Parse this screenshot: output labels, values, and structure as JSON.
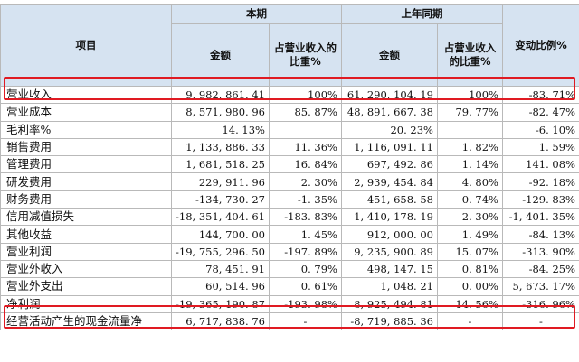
{
  "header": {
    "item": "项目",
    "current_period": "本期",
    "prior_period": "上年同期",
    "amount": "金额",
    "share_of_revenue": "占营业收入的比重%",
    "share_of_revenue_prior": "占营业收入的比重%",
    "change_ratio": "变动比例%"
  },
  "rows": [
    {
      "item": "营业收入",
      "cur_amount": "9, 982, 861. 41",
      "cur_share": "100%",
      "prior_amount": "61, 290, 104. 19",
      "prior_share": "100%",
      "change": "-83. 71%"
    },
    {
      "item": "营业成本",
      "cur_amount": "8, 571, 980. 96",
      "cur_share": "85. 87%",
      "prior_amount": "48, 891, 667. 38",
      "prior_share": "79. 77%",
      "change": "-82. 47%"
    },
    {
      "item": "毛利率%",
      "cur_amount": "14. 13%",
      "cur_share": "",
      "prior_amount": "20. 23%",
      "prior_share": "",
      "change": "-6. 10%"
    },
    {
      "item": "销售费用",
      "cur_amount": "1, 133, 886. 33",
      "cur_share": "11. 36%",
      "prior_amount": "1, 116, 091. 11",
      "prior_share": "1. 82%",
      "change": "1. 59%"
    },
    {
      "item": "管理费用",
      "cur_amount": "1, 681, 518. 25",
      "cur_share": "16. 84%",
      "prior_amount": "697, 492. 86",
      "prior_share": "1. 14%",
      "change": "141. 08%"
    },
    {
      "item": "研发费用",
      "cur_amount": "229, 911. 96",
      "cur_share": "2. 30%",
      "prior_amount": "2, 939, 454. 84",
      "prior_share": "4. 80%",
      "change": "-92. 18%"
    },
    {
      "item": "财务费用",
      "cur_amount": "-134, 730. 27",
      "cur_share": "-1. 35%",
      "prior_amount": "451, 658. 58",
      "prior_share": "0. 74%",
      "change": "-129. 83%"
    },
    {
      "item": "信用减值损失",
      "cur_amount": "-18, 351, 404. 61",
      "cur_share": "-183. 83%",
      "prior_amount": "1, 410, 178. 19",
      "prior_share": "2. 30%",
      "change": "-1, 401. 35%"
    },
    {
      "item": "其他收益",
      "cur_amount": "144, 700. 00",
      "cur_share": "1. 45%",
      "prior_amount": "912, 000. 00",
      "prior_share": "1. 49%",
      "change": "-84. 13%"
    },
    {
      "item": "营业利润",
      "cur_amount": "-19, 755, 296. 50",
      "cur_share": "-197. 89%",
      "prior_amount": "9, 235, 900. 89",
      "prior_share": "15. 07%",
      "change": "-313. 90%"
    },
    {
      "item": "营业外收入",
      "cur_amount": "78, 451. 91",
      "cur_share": "0. 79%",
      "prior_amount": "498, 147. 15",
      "prior_share": "0. 81%",
      "change": "-84. 25%"
    },
    {
      "item": "营业外支出",
      "cur_amount": "60, 514. 96",
      "cur_share": "0. 61%",
      "prior_amount": "1, 048. 21",
      "prior_share": "0. 00%",
      "change": "5, 673. 17%"
    },
    {
      "item": "净利润",
      "cur_amount": "-19, 365, 190. 87",
      "cur_share": "-193. 98%",
      "prior_amount": "8, 925, 494. 81",
      "prior_share": "14. 56%",
      "change": "-316. 96%"
    },
    {
      "item": "经营活动产生的现金流量净",
      "cur_amount": "6, 717, 838. 76",
      "cur_share": "-",
      "prior_amount": "-8, 719, 885. 36",
      "prior_share": "-",
      "change": "-"
    }
  ],
  "highlight_color": "#e01a22",
  "header_bg": "#d6e3f1"
}
